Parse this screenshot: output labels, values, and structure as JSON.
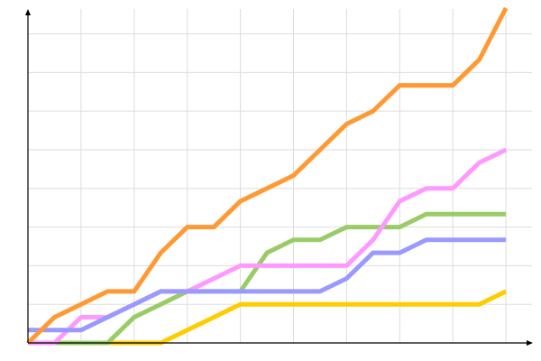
{
  "chart_data": {
    "type": "line",
    "title": "",
    "xlabel": "",
    "ylabel": "",
    "grid": true,
    "x": [
      0,
      1,
      2,
      3,
      4,
      5,
      6,
      7,
      8,
      9,
      10,
      11,
      12,
      13,
      14,
      15,
      16,
      17,
      18
    ],
    "xlim": [
      0,
      19
    ],
    "ylim": [
      0,
      26
    ],
    "x_grid_step": 2,
    "y_grid_step": 3,
    "series": [
      {
        "color": "#ffcc00",
        "values": [
          0,
          0,
          0,
          0,
          0,
          0,
          1,
          2,
          3,
          3,
          3,
          3,
          3,
          3,
          3,
          3,
          3,
          3,
          4
        ]
      },
      {
        "color": "#99cc66",
        "values": [
          0,
          0,
          0,
          0,
          2,
          3,
          4,
          4,
          4,
          7,
          8,
          8,
          9,
          9,
          9,
          10,
          10,
          10,
          10
        ]
      },
      {
        "color": "#ff99ff",
        "values": [
          0,
          0,
          2,
          2,
          3,
          4,
          4,
          5,
          6,
          6,
          6,
          6,
          6,
          8,
          11,
          12,
          12,
          14,
          15
        ]
      },
      {
        "color": "#9999ff",
        "values": [
          1,
          1,
          1,
          2,
          3,
          4,
          4,
          4,
          4,
          4,
          4,
          4,
          5,
          7,
          7,
          8,
          8,
          8,
          8
        ]
      },
      {
        "color": "#ff9933",
        "values": [
          0,
          2,
          3,
          4,
          4,
          7,
          9,
          9,
          11,
          12,
          13,
          15,
          17,
          18,
          20,
          20,
          20,
          22,
          26
        ]
      }
    ]
  }
}
